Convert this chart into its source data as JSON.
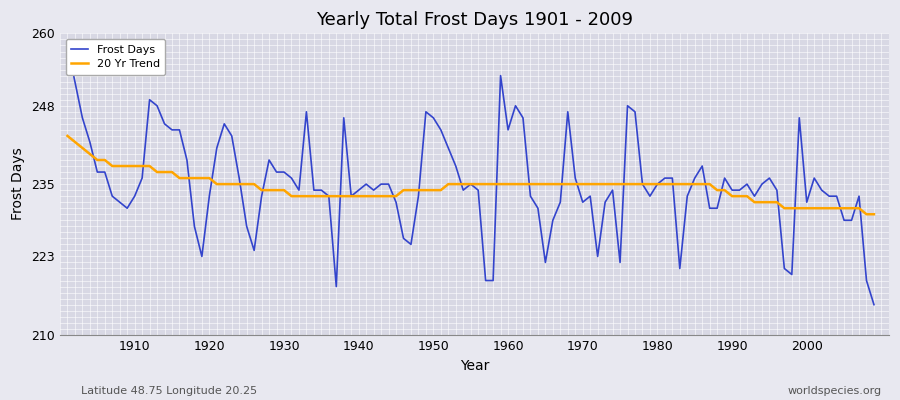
{
  "title": "Yearly Total Frost Days 1901 - 2009",
  "xlabel": "Year",
  "ylabel": "Frost Days",
  "ylim": [
    210,
    260
  ],
  "yticks": [
    210,
    223,
    235,
    248,
    260
  ],
  "xticks": [
    1910,
    1920,
    1930,
    1940,
    1950,
    1960,
    1970,
    1980,
    1990,
    2000
  ],
  "xlim": [
    1900,
    2011
  ],
  "start_year": 1901,
  "frost_days": [
    258,
    252,
    246,
    242,
    237,
    237,
    233,
    232,
    231,
    233,
    236,
    249,
    248,
    245,
    244,
    244,
    239,
    228,
    223,
    233,
    241,
    245,
    243,
    236,
    228,
    224,
    233,
    239,
    237,
    237,
    236,
    234,
    247,
    234,
    234,
    233,
    218,
    246,
    233,
    234,
    235,
    234,
    235,
    235,
    232,
    226,
    225,
    233,
    247,
    246,
    244,
    241,
    238,
    234,
    235,
    234,
    219,
    219,
    253,
    244,
    248,
    246,
    233,
    231,
    222,
    229,
    232,
    247,
    236,
    232,
    233,
    223,
    232,
    234,
    222,
    248,
    247,
    235,
    233,
    235,
    236,
    236,
    221,
    233,
    236,
    238,
    231,
    231,
    236,
    234,
    234,
    235,
    233,
    235,
    236,
    234,
    221,
    220,
    246,
    232,
    236,
    234,
    233,
    233,
    229,
    229,
    233,
    219,
    215
  ],
  "trend_start_year": 1901,
  "trend_values": [
    243,
    242,
    241,
    240,
    239,
    239,
    238,
    238,
    238,
    238,
    238,
    238,
    237,
    237,
    237,
    236,
    236,
    236,
    236,
    236,
    235,
    235,
    235,
    235,
    235,
    235,
    234,
    234,
    234,
    234,
    233,
    233,
    233,
    233,
    233,
    233,
    233,
    233,
    233,
    233,
    233,
    233,
    233,
    233,
    233,
    234,
    234,
    234,
    234,
    234,
    234,
    235,
    235,
    235,
    235,
    235,
    235,
    235,
    235,
    235,
    235,
    235,
    235,
    235,
    235,
    235,
    235,
    235,
    235,
    235,
    235,
    235,
    235,
    235,
    235,
    235,
    235,
    235,
    235,
    235,
    235,
    235,
    235,
    235,
    235,
    235,
    235,
    234,
    234,
    233,
    233,
    233,
    232,
    232,
    232,
    232,
    231,
    231,
    231,
    231,
    231,
    231,
    231,
    231,
    231,
    231,
    231,
    230,
    230
  ],
  "frost_color": "#3344cc",
  "trend_color": "#ffa500",
  "bg_color": "#e8e8f0",
  "plot_bg_color": "#d8d8e4",
  "grid_color": "#ffffff",
  "legend_labels": [
    "Frost Days",
    "20 Yr Trend"
  ],
  "footnote_left": "Latitude 48.75 Longitude 20.25",
  "footnote_right": "worldspecies.org"
}
